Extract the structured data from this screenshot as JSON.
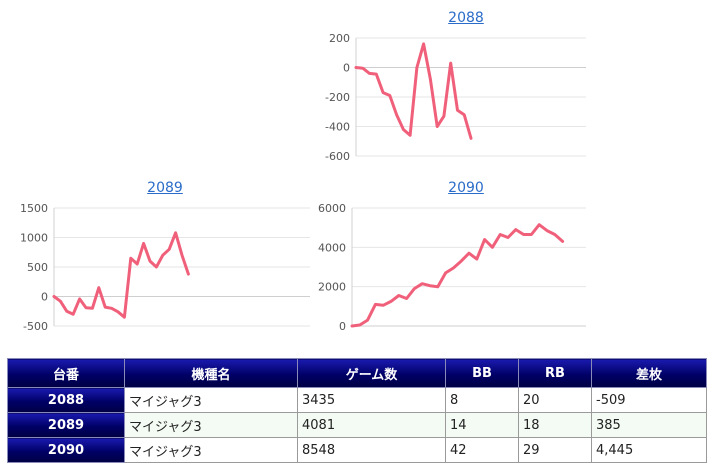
{
  "chart_data": [
    {
      "type": "line",
      "title": "2088",
      "ylim": [
        -600,
        200
      ],
      "yticks": [
        200,
        0,
        -200,
        -400,
        -600
      ],
      "grid": true,
      "series": [
        {
          "values": [
            0,
            -5,
            -40,
            -45,
            -170,
            -190,
            -320,
            -420,
            -460,
            0,
            160,
            -80,
            -400,
            -330,
            30,
            -290,
            -320,
            -480
          ]
        }
      ]
    },
    {
      "type": "line",
      "title": "2089",
      "ylim": [
        -500,
        1500
      ],
      "yticks": [
        1500,
        1000,
        500,
        0,
        -500
      ],
      "grid": true,
      "series": [
        {
          "values": [
            0,
            -80,
            -250,
            -300,
            -40,
            -190,
            -200,
            150,
            -180,
            -200,
            -260,
            -350,
            650,
            550,
            900,
            600,
            500,
            700,
            800,
            1080,
            700,
            380
          ]
        }
      ]
    },
    {
      "type": "line",
      "title": "2090",
      "ylim": [
        0,
        6000
      ],
      "yticks": [
        6000,
        4000,
        2000,
        0
      ],
      "grid": true,
      "series": [
        {
          "values": [
            0,
            50,
            300,
            1100,
            1050,
            1250,
            1550,
            1400,
            1900,
            2150,
            2050,
            2000,
            2700,
            2950,
            3300,
            3700,
            3400,
            4400,
            4000,
            4650,
            4500,
            4900,
            4650,
            4650,
            5150,
            4850,
            4650,
            4300
          ]
        }
      ]
    }
  ],
  "table": {
    "headers": [
      "台番",
      "機種名",
      "ゲーム数",
      "BB",
      "RB",
      "差枚"
    ],
    "rows": [
      {
        "id": "2088",
        "machine": "マイジャグ3",
        "games": "3435",
        "bb": "8",
        "rb": "20",
        "diff": "-509"
      },
      {
        "id": "2089",
        "machine": "マイジャグ3",
        "games": "4081",
        "bb": "14",
        "rb": "18",
        "diff": "385"
      },
      {
        "id": "2090",
        "machine": "マイジャグ3",
        "games": "8548",
        "bb": "42",
        "rb": "29",
        "diff": "4,445"
      }
    ]
  },
  "colors": {
    "series": "#f0607a",
    "header_bg": "#000066",
    "negative": "#e01010",
    "link": "#2a6cc9"
  }
}
